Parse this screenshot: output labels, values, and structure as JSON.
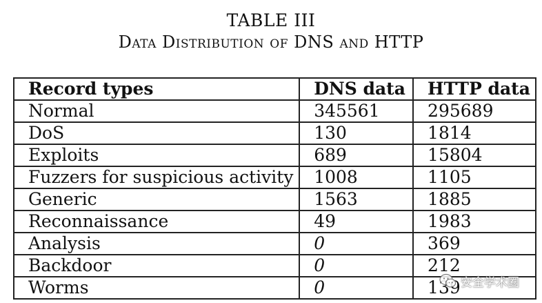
{
  "caption": {
    "title": "TABLE III",
    "subtitle": "Data Distribution of DNS and HTTP"
  },
  "table": {
    "headers": [
      "Record types",
      "DNS data",
      "HTTP data"
    ],
    "rows": [
      {
        "type": "Normal",
        "dns": "345561",
        "http": "295689"
      },
      {
        "type": "DoS",
        "dns": "130",
        "http": "1814"
      },
      {
        "type": "Exploits",
        "dns": "689",
        "http": "15804"
      },
      {
        "type": "Fuzzers for suspicious activity",
        "dns": "1008",
        "http": "1105"
      },
      {
        "type": "Generic",
        "dns": "1563",
        "http": "1885"
      },
      {
        "type": "Reconnaissance",
        "dns": "49",
        "http": "1983"
      },
      {
        "type": "Analysis",
        "dns": "0",
        "http": "369"
      },
      {
        "type": "Backdoor",
        "dns": "0",
        "http": "212"
      },
      {
        "type": "Worms",
        "dns": "0",
        "http": "139"
      }
    ]
  },
  "watermark": {
    "text": "安全学术圈",
    "icon": "wechat-icon"
  }
}
